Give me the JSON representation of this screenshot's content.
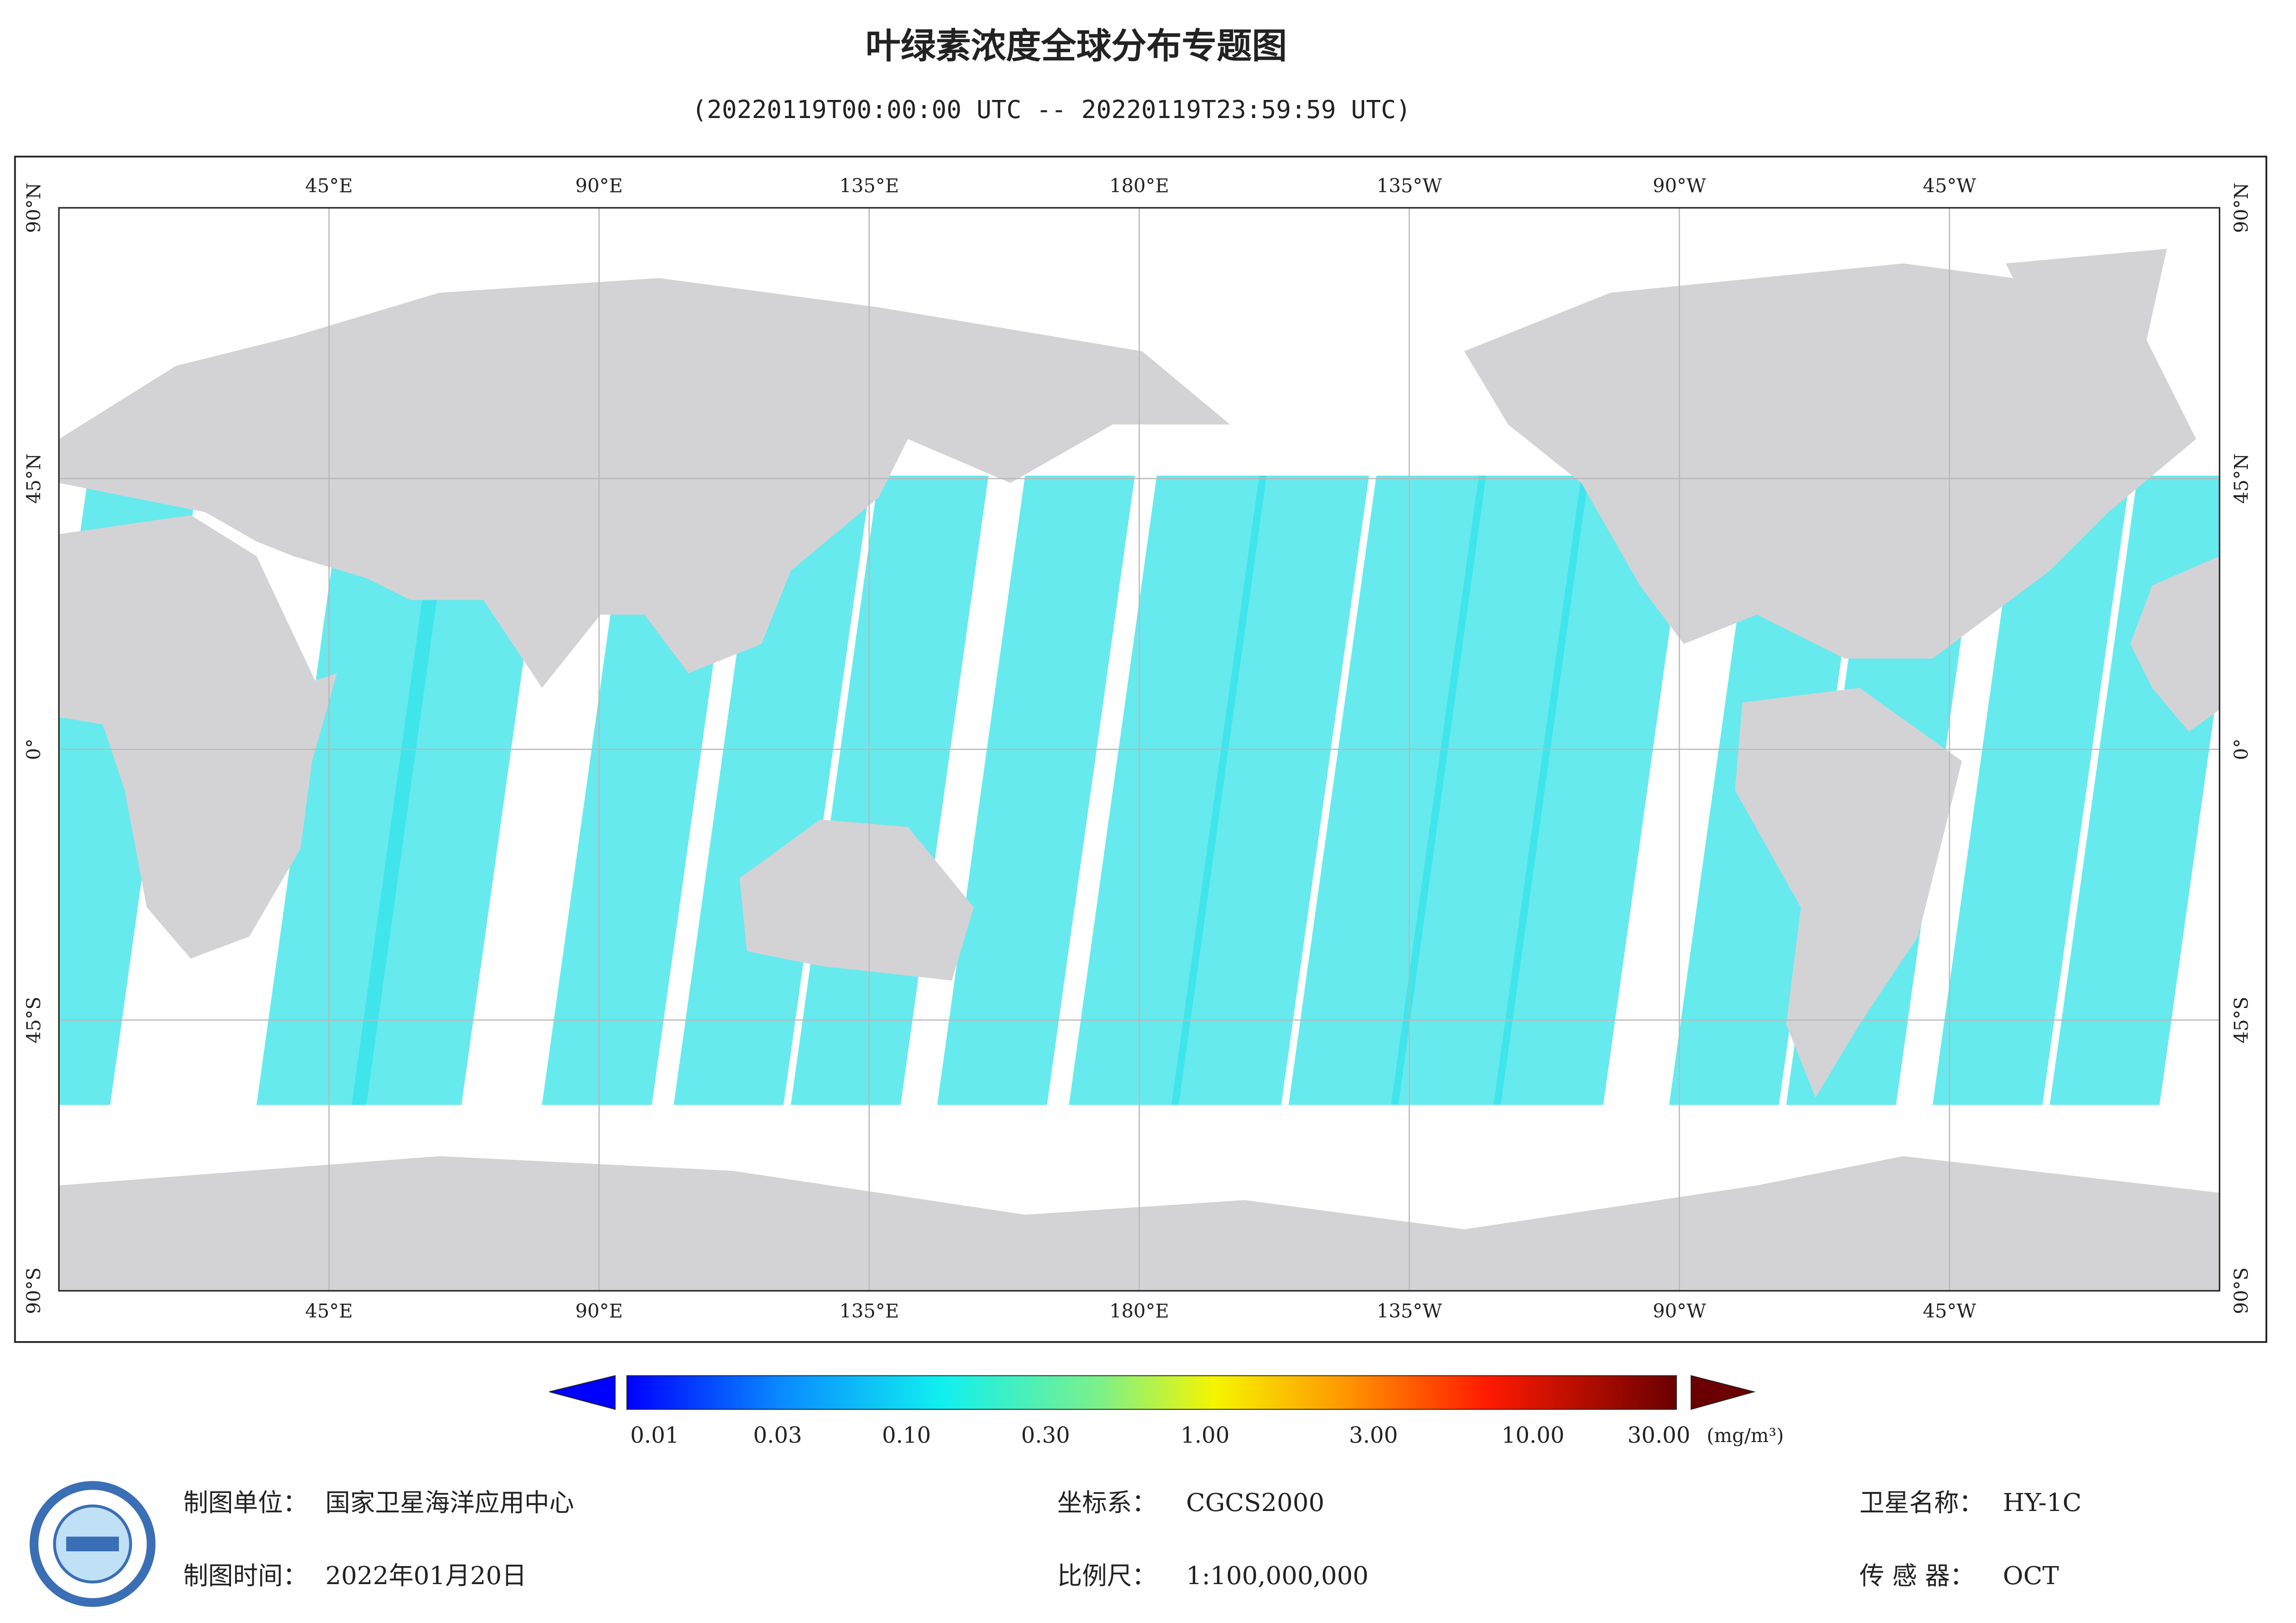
{
  "title": "叶绿素浓度全球分布专题图",
  "subtitle": "(20220119T00:00:00 UTC -- 20220119T23:59:59 UTC)",
  "map": {
    "lon_labels": [
      "45°E",
      "90°E",
      "135°E",
      "180°E",
      "135°W",
      "90°W",
      "45°W"
    ],
    "lat_labels": [
      "90°N",
      "45°N",
      "0°",
      "45°S",
      "90°S"
    ]
  },
  "colorbar": {
    "labels": [
      "0.01",
      "0.03",
      "0.10",
      "0.30",
      "1.00",
      "3.00",
      "10.00",
      "30.00"
    ],
    "unit": "(mg/m³)"
  },
  "footer": {
    "unit_label": "制图单位：",
    "unit": "国家卫星海洋应用中心",
    "date_label": "制图时间：",
    "date": "2022年01月20日",
    "crs_label": "坐标系：",
    "crs": "CGCS2000",
    "scale_label": "比例尺：",
    "scale": "1:100,000,000",
    "satellite_label": "卫星名称：",
    "satellite": "HY-1C",
    "sensor_label": "传 感 器：",
    "sensor": "OCT"
  }
}
